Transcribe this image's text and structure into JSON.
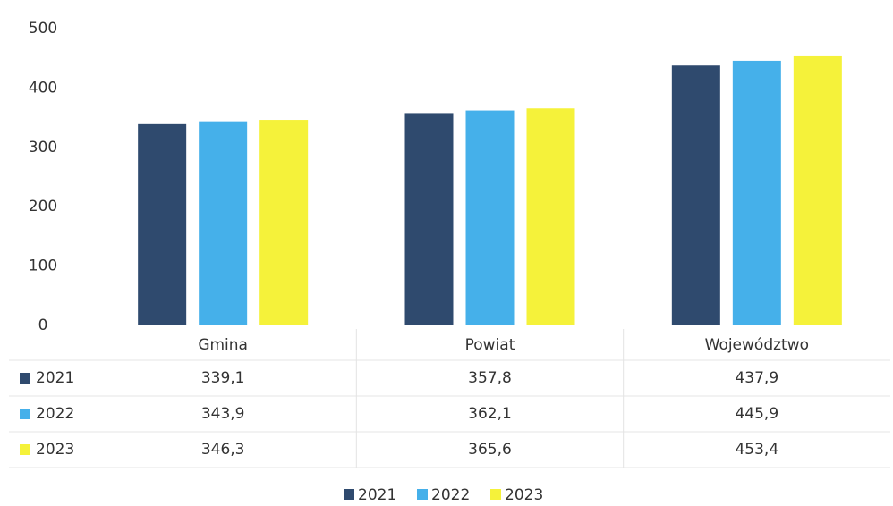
{
  "chart_data": {
    "type": "bar",
    "categories": [
      "Gmina",
      "Powiat",
      "Województwo"
    ],
    "series": [
      {
        "name": "2021",
        "color": "#2f4a6e",
        "values": [
          339.1,
          357.8,
          437.9
        ],
        "value_labels": [
          "339,1",
          "357,8",
          "437,9"
        ]
      },
      {
        "name": "2022",
        "color": "#45b0ea",
        "values": [
          343.9,
          362.1,
          445.9
        ],
        "value_labels": [
          "343,9",
          "362,1",
          "445,9"
        ]
      },
      {
        "name": "2023",
        "color": "#f5f23a",
        "values": [
          346.3,
          365.6,
          453.4
        ],
        "value_labels": [
          "346,3",
          "365,6",
          "453,4"
        ]
      }
    ],
    "ylim": [
      0,
      500
    ],
    "yticks": [
      0,
      100,
      200,
      300,
      400,
      500
    ]
  }
}
